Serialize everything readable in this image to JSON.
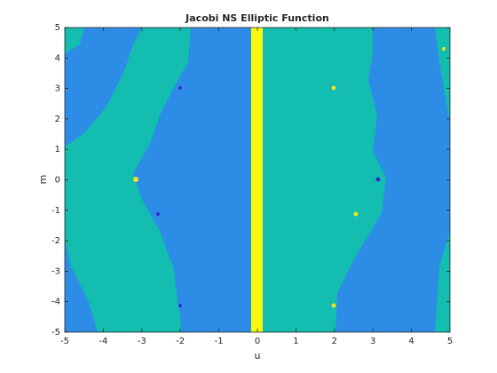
{
  "chart_data": {
    "type": "image",
    "title": "Jacobi NS Elliptic Function",
    "x_label": "u",
    "y_label": "m",
    "xlim": [
      -5,
      5
    ],
    "ylim": [
      -5,
      5
    ],
    "xticks": [
      -5,
      -4,
      -3,
      -2,
      -1,
      0,
      1,
      2,
      3,
      4,
      5
    ],
    "yticks": [
      -5,
      -4,
      -3,
      -2,
      -1,
      0,
      1,
      2,
      3,
      4,
      5
    ]
  }
}
